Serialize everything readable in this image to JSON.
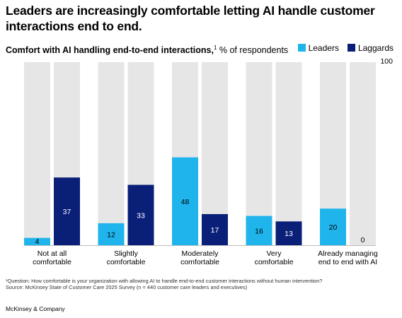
{
  "headline": "Leaders are increasingly comfortable letting AI handle customer interactions end to end.",
  "subtitle": {
    "bold": "Comfort with AI handling end-to-end interactions,",
    "sup": "1",
    "rest": " % of respondents"
  },
  "footnote": {
    "line1": "¹Question: How comfortable is your organization with allowing AI to handle end-to-end customer interactions without human intervention?",
    "line2": "Source: McKinsey State of Customer Care 2025 Survey (n = 440 customer care leaders and executives)"
  },
  "brand": "McKinsey & Company",
  "colors": {
    "leaders": "#1fb5ec",
    "laggards": "#0a1f78",
    "track": "#e6e6e6"
  },
  "chart_data": {
    "type": "bar",
    "categories": [
      [
        "Not at all",
        "comfortable"
      ],
      [
        "Slightly",
        "comfortable"
      ],
      [
        "Moderately",
        "comfortable"
      ],
      [
        "Very",
        "comfortable"
      ],
      [
        "Already managing",
        "end to end with AI"
      ]
    ],
    "series": [
      {
        "name": "Leaders",
        "values": [
          4,
          12,
          48,
          16,
          20
        ]
      },
      {
        "name": "Laggards",
        "values": [
          37,
          33,
          17,
          13,
          0
        ]
      }
    ],
    "ylim": [
      0,
      100
    ],
    "ymax_label": "100",
    "legend_position": "top-right"
  }
}
